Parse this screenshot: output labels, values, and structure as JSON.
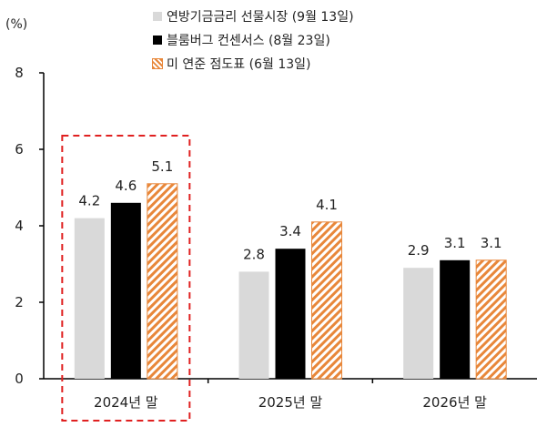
{
  "chart_data": {
    "type": "bar",
    "ylabel": "(%)",
    "ylim": [
      0,
      8
    ],
    "yticks": [
      0,
      2,
      4,
      6,
      8
    ],
    "categories": [
      "2024년 말",
      "2025년 말",
      "2026년 말"
    ],
    "series": [
      {
        "name": "연방기금금리 선물시장 (9월 13일)",
        "values": [
          4.2,
          2.8,
          2.9
        ],
        "color": "#d9d9d9",
        "pattern": "solid"
      },
      {
        "name": "블룸버그 컨센서스 (8월 23일)",
        "values": [
          4.6,
          3.4,
          3.1
        ],
        "color": "#000000",
        "pattern": "solid"
      },
      {
        "name": "미 연준 점도표 (6월 13일)",
        "values": [
          5.1,
          4.1,
          3.1
        ],
        "color": "#e8873a",
        "pattern": "diagonal-stripes"
      }
    ],
    "value_labels": [
      [
        "4.2",
        "2.8",
        "2.9"
      ],
      [
        "4.6",
        "3.4",
        "3.1"
      ],
      [
        "5.1",
        "4.1",
        "3.1"
      ]
    ],
    "highlight": {
      "category": "2024년 말",
      "style": "red dashed box",
      "color": "#e02020"
    },
    "legend_position": "top",
    "grid": false
  }
}
